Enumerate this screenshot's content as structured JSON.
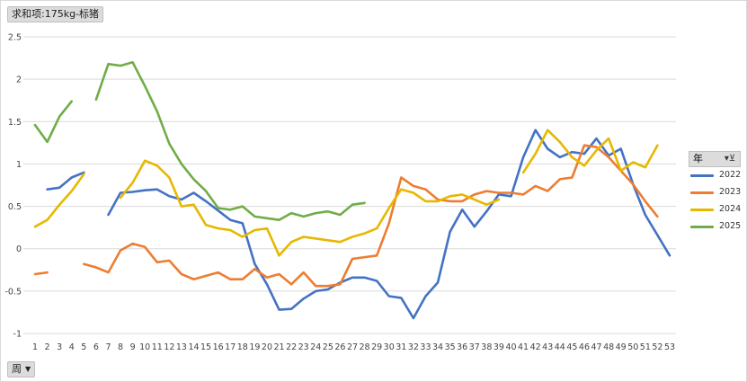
{
  "pivot": {
    "value_field": "求和项:175kg-标猪",
    "axis_field": "周",
    "legend_title": "年"
  },
  "chart_data": {
    "type": "line",
    "ylim": [
      -1,
      2.5
    ],
    "yticks": [
      "-1",
      "-0.5",
      "0",
      "0.5",
      "1",
      "1.5",
      "2",
      "2.5"
    ],
    "grid": true,
    "legend_position": "right",
    "categories": [
      "1",
      "2",
      "3",
      "4",
      "5",
      "6",
      "7",
      "8",
      "9",
      "10",
      "11",
      "12",
      "13",
      "14",
      "15",
      "16",
      "17",
      "18",
      "19",
      "20",
      "21",
      "22",
      "23",
      "24",
      "25",
      "26",
      "27",
      "28",
      "29",
      "30",
      "31",
      "32",
      "33",
      "34",
      "35",
      "36",
      "37",
      "38",
      "39",
      "40",
      "41",
      "42",
      "43",
      "44",
      "45",
      "46",
      "47",
      "48",
      "49",
      "50",
      "51",
      "52",
      "53"
    ],
    "series": [
      {
        "name": "2022",
        "color": "#4472c4",
        "values": [
          null,
          0.7,
          0.72,
          0.84,
          0.9,
          null,
          0.4,
          0.66,
          0.67,
          0.69,
          0.7,
          0.62,
          0.58,
          0.66,
          0.56,
          0.45,
          0.34,
          0.3,
          -0.18,
          -0.42,
          -0.72,
          -0.71,
          -0.59,
          -0.5,
          -0.48,
          -0.4,
          -0.34,
          -0.34,
          -0.38,
          -0.56,
          -0.58,
          -0.82,
          -0.56,
          -0.4,
          0.2,
          0.46,
          0.26,
          0.44,
          0.64,
          0.62,
          1.08,
          1.4,
          1.18,
          1.08,
          1.14,
          1.12,
          1.3,
          1.1,
          1.18,
          0.76,
          0.4,
          0.16,
          -0.08
        ]
      },
      {
        "name": "2023",
        "color": "#ed7d31",
        "values": [
          -0.3,
          -0.28,
          null,
          null,
          -0.18,
          -0.22,
          -0.28,
          -0.02,
          0.06,
          0.02,
          -0.16,
          -0.14,
          -0.3,
          -0.36,
          -0.32,
          -0.28,
          -0.36,
          -0.36,
          -0.24,
          -0.34,
          -0.3,
          -0.42,
          -0.28,
          -0.44,
          -0.44,
          -0.42,
          -0.12,
          -0.1,
          -0.08,
          0.3,
          0.84,
          0.74,
          0.7,
          0.58,
          0.56,
          0.56,
          0.64,
          0.68,
          0.66,
          0.66,
          0.64,
          0.74,
          0.68,
          0.82,
          0.84,
          1.22,
          1.2,
          1.08,
          0.92,
          0.76,
          0.56,
          0.38,
          null
        ]
      },
      {
        "name": "2024",
        "color": "#e6b800",
        "values": [
          0.26,
          0.34,
          0.52,
          0.68,
          0.88,
          null,
          null,
          0.6,
          0.78,
          1.04,
          0.98,
          0.84,
          0.5,
          0.52,
          0.28,
          0.24,
          0.22,
          0.14,
          0.22,
          0.24,
          -0.08,
          0.08,
          0.14,
          0.12,
          0.1,
          0.08,
          0.14,
          0.18,
          0.24,
          0.48,
          0.7,
          0.66,
          0.56,
          0.56,
          0.62,
          0.64,
          0.58,
          0.52,
          0.58,
          null,
          0.9,
          1.12,
          1.4,
          1.26,
          1.08,
          0.98,
          1.16,
          1.3,
          0.92,
          1.02,
          0.96,
          1.22,
          null
        ]
      },
      {
        "name": "2025",
        "color": "#70ad47",
        "values": [
          1.46,
          1.26,
          1.56,
          1.74,
          null,
          1.76,
          2.18,
          2.16,
          2.2,
          1.92,
          1.62,
          1.24,
          1.0,
          0.82,
          0.68,
          0.48,
          0.46,
          0.5,
          0.38,
          0.36,
          0.34,
          0.42,
          0.38,
          0.42,
          0.44,
          0.4,
          0.52,
          0.54,
          null,
          null,
          null,
          null,
          null,
          null,
          null,
          null,
          null,
          null,
          null,
          null,
          null,
          null,
          null,
          null,
          null,
          null,
          null,
          null,
          null,
          null,
          null,
          null,
          null
        ]
      }
    ]
  }
}
